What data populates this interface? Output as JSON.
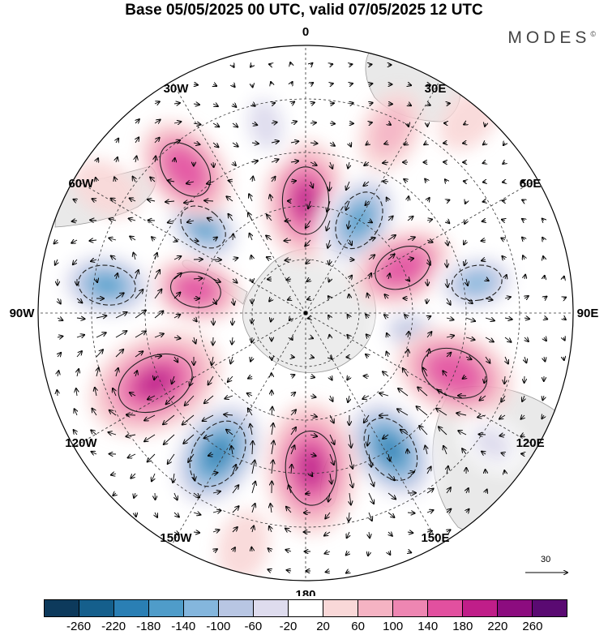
{
  "title": "Base 05/05/2025 00 UTC, valid 07/05/2025 12 UTC",
  "brand": {
    "name": "MODES",
    "mark": "©"
  },
  "projection": "south-polar-stereographic",
  "longitude_labels": [
    {
      "text": "0",
      "lon": 0
    },
    {
      "text": "30E",
      "lon": 30
    },
    {
      "text": "60E",
      "lon": 60
    },
    {
      "text": "90E",
      "lon": 90
    },
    {
      "text": "120E",
      "lon": 120
    },
    {
      "text": "150E",
      "lon": 150
    },
    {
      "text": "180",
      "lon": 180
    },
    {
      "text": "150W",
      "lon": -150
    },
    {
      "text": "120W",
      "lon": -120
    },
    {
      "text": "90W",
      "lon": -90
    },
    {
      "text": "60W",
      "lon": -60
    },
    {
      "text": "30W",
      "lon": -30
    }
  ],
  "vector_scale": {
    "label": "30"
  },
  "colorbar": {
    "colors": [
      "#0d3a5c",
      "#155f8c",
      "#2a7fb4",
      "#4f9cc9",
      "#84b6dd",
      "#b8c6e3",
      "#dedcee",
      "#ffffff",
      "#f9d8d8",
      "#f5b3c3",
      "#ee86b2",
      "#e2509f",
      "#c01e89",
      "#8c0c7f",
      "#5a0a72"
    ],
    "tick_labels": [
      "-260",
      "-220",
      "-180",
      "-140",
      "-100",
      "-60",
      "-20",
      "20",
      "60",
      "100",
      "140",
      "180",
      "220",
      "260"
    ]
  },
  "anomaly_blobs": [
    {
      "lon": 0,
      "rfrac": 0.42,
      "value": 180,
      "size": 1.0
    },
    {
      "lon": -12,
      "rfrac": 0.72,
      "value": -40,
      "size": 0.7
    },
    {
      "lon": 30,
      "rfrac": 0.4,
      "value": -170,
      "size": 0.9
    },
    {
      "lon": 25,
      "rfrac": 0.75,
      "value": 60,
      "size": 0.7
    },
    {
      "lon": 65,
      "rfrac": 0.4,
      "value": 150,
      "size": 0.85
    },
    {
      "lon": 80,
      "rfrac": 0.65,
      "value": -120,
      "size": 0.75
    },
    {
      "lon": 100,
      "rfrac": 0.4,
      "value": -80,
      "size": 0.6
    },
    {
      "lon": 112,
      "rfrac": 0.6,
      "value": 170,
      "size": 1.0
    },
    {
      "lon": 148,
      "rfrac": 0.6,
      "value": -220,
      "size": 1.0
    },
    {
      "lon": 178,
      "rfrac": 0.58,
      "value": 180,
      "size": 1.1
    },
    {
      "lon": -148,
      "rfrac": 0.62,
      "value": -200,
      "size": 1.05
    },
    {
      "lon": -115,
      "rfrac": 0.62,
      "value": 180,
      "size": 1.15
    },
    {
      "lon": -78,
      "rfrac": 0.42,
      "value": 150,
      "size": 0.75
    },
    {
      "lon": -82,
      "rfrac": 0.75,
      "value": -170,
      "size": 0.85
    },
    {
      "lon": -50,
      "rfrac": 0.5,
      "value": -150,
      "size": 0.75
    },
    {
      "lon": -40,
      "rfrac": 0.7,
      "value": 160,
      "size": 0.9
    },
    {
      "lon": -58,
      "rfrac": 0.88,
      "value": 40,
      "size": 0.6
    },
    {
      "lon": 40,
      "rfrac": 0.95,
      "value": 40,
      "size": 0.6
    },
    {
      "lon": 125,
      "rfrac": 0.85,
      "value": -30,
      "size": 0.6
    },
    {
      "lon": -165,
      "rfrac": 0.9,
      "value": 30,
      "size": 0.6
    }
  ]
}
